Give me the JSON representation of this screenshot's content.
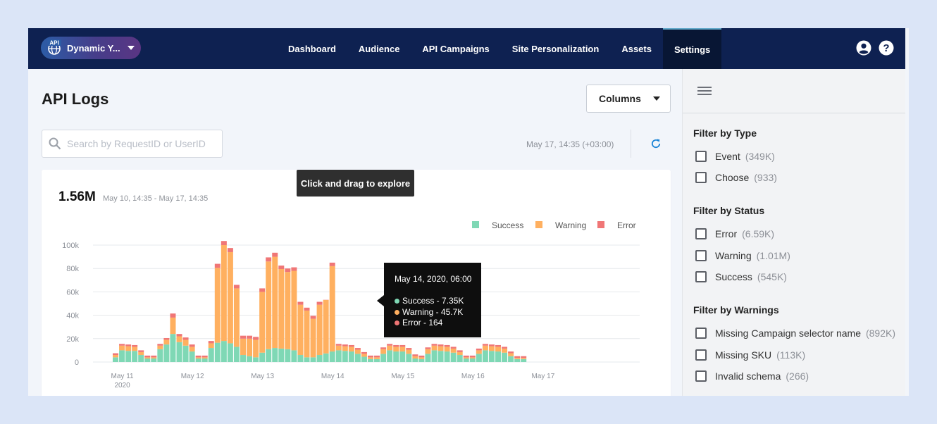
{
  "header": {
    "site_name": "Dynamic Y...",
    "site_badge": "API",
    "nav": [
      {
        "label": "Dashboard",
        "active": false
      },
      {
        "label": "Audience",
        "active": false
      },
      {
        "label": "API Campaigns",
        "active": false
      },
      {
        "label": "Site Personalization",
        "active": false
      },
      {
        "label": "Assets",
        "active": false
      },
      {
        "label": "Settings",
        "active": true
      }
    ],
    "icons": [
      "user-icon",
      "help-icon"
    ]
  },
  "main": {
    "title": "API Logs",
    "columns_button": "Columns",
    "search_placeholder": "Search by RequestID or UserID",
    "timestamp": "May 17, 14:35 (+03:00)",
    "total": "1.56M",
    "date_range": "May 10, 14:35 - May 17, 14:35",
    "drag_tip": "Click and drag to explore"
  },
  "tooltip": {
    "title": "May 14, 2020, 06:00",
    "rows": [
      "Success - 7.35K",
      "Warning - 45.7K",
      "Error - 164"
    ]
  },
  "colors": {
    "success": "#7fd8b5",
    "warning": "#ffb060",
    "error": "#f07676",
    "nav_bg": "#0e2151",
    "refresh": "#1b84d6"
  },
  "chart_data": {
    "type": "bar",
    "stacked": true,
    "legend": [
      "Success",
      "Warning",
      "Error"
    ],
    "legend_position": "top-right",
    "ylim": [
      0,
      100000
    ],
    "y_ticks": [
      "0",
      "20k",
      "40k",
      "60k",
      "80k",
      "100k"
    ],
    "x_ticks": [
      {
        "label": "May 11",
        "sub": "2020",
        "index": 1.5
      },
      {
        "label": "May 12",
        "sub": "",
        "index": 12.5
      },
      {
        "label": "May 13",
        "sub": "",
        "index": 23.5
      },
      {
        "label": "May 14",
        "sub": "",
        "index": 34.5
      },
      {
        "label": "May 15",
        "sub": "",
        "index": 45.5
      },
      {
        "label": "May 16",
        "sub": "",
        "index": 56.5
      },
      {
        "label": "May 17",
        "sub": "",
        "index": 67.5
      }
    ],
    "series": [
      {
        "name": "Success",
        "values": [
          4000,
          10000,
          9500,
          9500,
          6000,
          3000,
          3000,
          11000,
          15000,
          24000,
          17000,
          14000,
          9000,
          3000,
          3000,
          12000,
          16500,
          18000,
          16000,
          13000,
          6000,
          5000,
          4000,
          8000,
          11000,
          12000,
          11500,
          11000,
          10000,
          6000,
          4000,
          4000,
          6000,
          7350,
          9000,
          10000,
          9500,
          9000,
          7000,
          4500,
          2500,
          2500,
          7000,
          10000,
          9000,
          9000,
          7000,
          3000,
          2500,
          7000,
          10000,
          9500,
          9000,
          8000,
          6000,
          3000,
          3000,
          7000,
          10000,
          9500,
          9000,
          8000,
          5000,
          2500,
          2500
        ]
      },
      {
        "name": "Warning",
        "values": [
          2000,
          4000,
          4000,
          3500,
          2500,
          1000,
          1000,
          3000,
          4000,
          14000,
          5000,
          5000,
          4000,
          1000,
          1000,
          4000,
          64000,
          82000,
          78000,
          50000,
          14000,
          15000,
          15000,
          52000,
          75000,
          78000,
          68000,
          66000,
          68000,
          43000,
          40000,
          33000,
          43000,
          45700,
          73000,
          4000,
          4000,
          4000,
          3500,
          2500,
          1500,
          1500,
          4000,
          4000,
          4000,
          4000,
          3500,
          2000,
          1500,
          4000,
          4000,
          4000,
          4000,
          3500,
          2500,
          1000,
          1000,
          3000,
          4000,
          4000,
          4000,
          3500,
          2500,
          1000,
          1000
        ]
      },
      {
        "name": "Error",
        "values": [
          1500,
          1500,
          1500,
          1500,
          1500,
          1500,
          1500,
          1500,
          1500,
          3500,
          2000,
          2000,
          2000,
          1500,
          1500,
          2000,
          3500,
          3500,
          3500,
          3000,
          2500,
          2500,
          2500,
          3000,
          3500,
          3500,
          3000,
          3000,
          3000,
          2500,
          2500,
          2500,
          2500,
          164,
          3000,
          1500,
          1500,
          1500,
          1500,
          1500,
          1500,
          1500,
          1500,
          1500,
          1500,
          1500,
          1500,
          1500,
          1500,
          1500,
          1500,
          1500,
          1500,
          1500,
          1500,
          1500,
          1500,
          1500,
          1500,
          1500,
          1500,
          1500,
          1500,
          1500,
          1500
        ]
      }
    ]
  },
  "sidebar": {
    "groups": [
      {
        "title": "Filter by Type",
        "options": [
          {
            "label": "Event",
            "count": "(349K)"
          },
          {
            "label": "Choose",
            "count": "(933)"
          }
        ]
      },
      {
        "title": "Filter by Status",
        "options": [
          {
            "label": "Error",
            "count": "(6.59K)"
          },
          {
            "label": "Warning",
            "count": "(1.01M)"
          },
          {
            "label": "Success",
            "count": "(545K)"
          }
        ]
      },
      {
        "title": "Filter by Warnings",
        "options": [
          {
            "label": "Missing Campaign selector name",
            "count": "(892K)"
          },
          {
            "label": "Missing SKU",
            "count": "(113K)"
          },
          {
            "label": "Invalid schema",
            "count": "(266)"
          }
        ]
      }
    ]
  }
}
